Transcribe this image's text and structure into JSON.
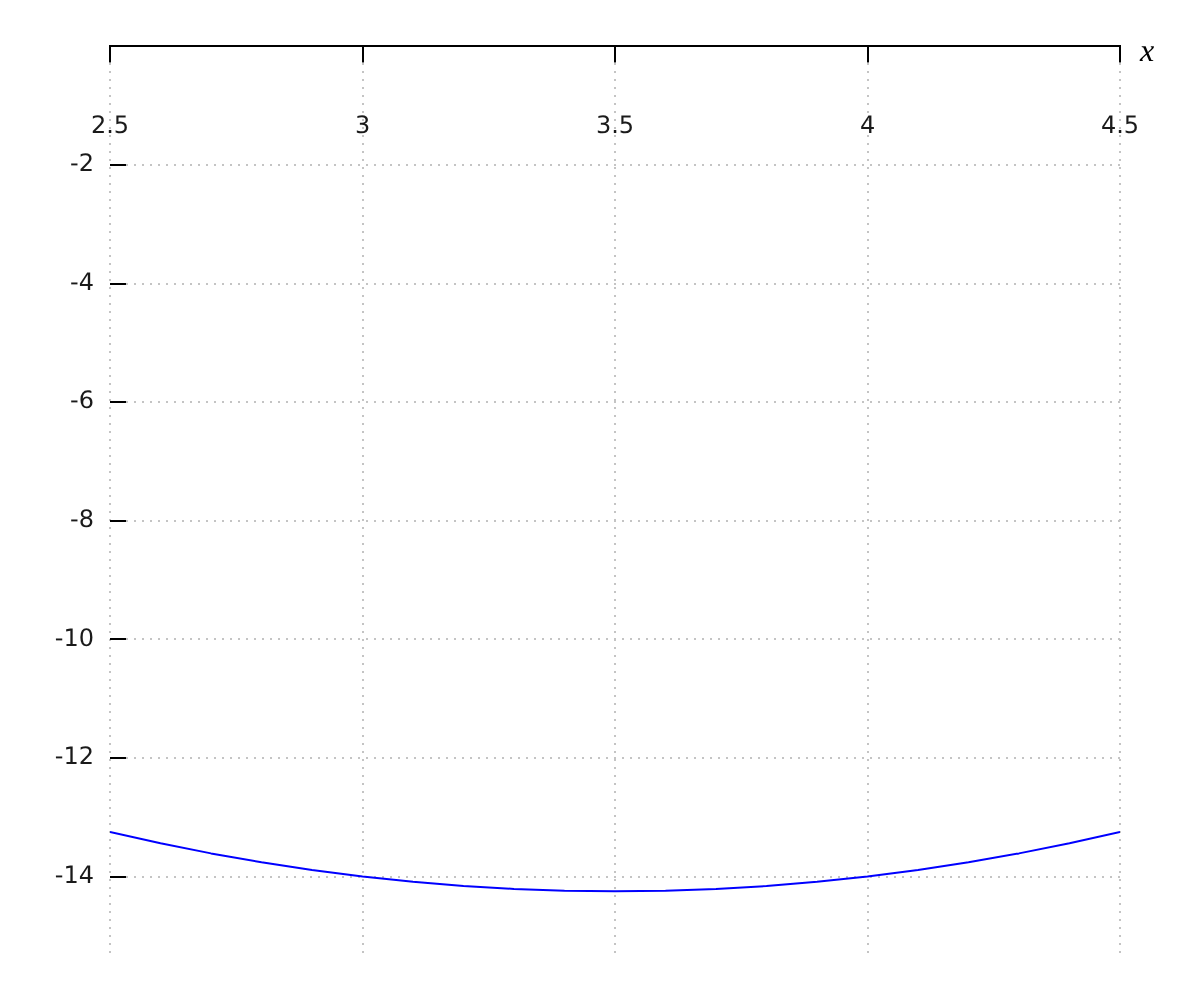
{
  "chart_data": {
    "type": "line",
    "xlabel": "x",
    "x": [
      2.5,
      2.6,
      2.7,
      2.8,
      2.9,
      3.0,
      3.1,
      3.2,
      3.3,
      3.4,
      3.5,
      3.6,
      3.7,
      3.8,
      3.9,
      4.0,
      4.1,
      4.2,
      4.3,
      4.4,
      4.5
    ],
    "series": [
      {
        "color": "#0000ff",
        "values": [
          -13.25,
          -13.44,
          -13.61,
          -13.76,
          -13.89,
          -14.0,
          -14.09,
          -14.16,
          -14.21,
          -14.24,
          -14.25,
          -14.24,
          -14.21,
          -14.16,
          -14.09,
          -14.0,
          -13.89,
          -13.76,
          -13.61,
          -13.44,
          -13.25
        ]
      }
    ],
    "xlim": [
      2.5,
      4.5
    ],
    "ylim": [
      -15.3,
      0
    ],
    "xticks": [
      2.5,
      3,
      3.5,
      4,
      4.5
    ],
    "yticks": [
      -2,
      -4,
      -6,
      -8,
      -10,
      -12,
      -14
    ],
    "grid": true,
    "marker": "none",
    "line_style": "solid"
  }
}
